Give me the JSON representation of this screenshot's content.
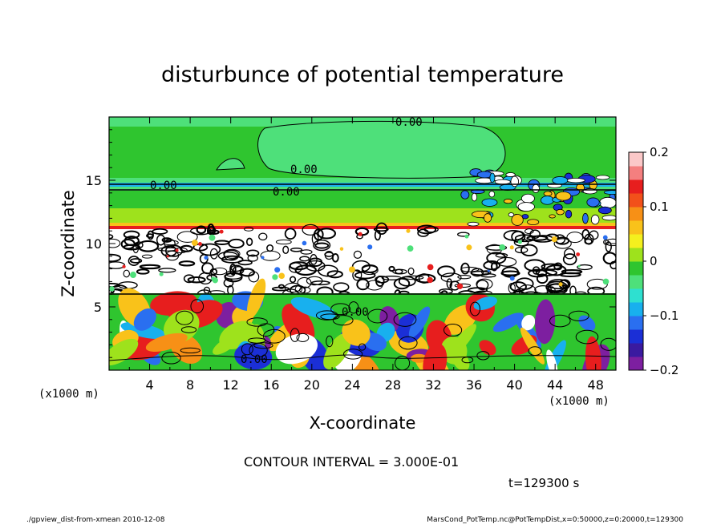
{
  "chart_data": {
    "type": "heatmap",
    "title": "disturbunce of potential temperature",
    "xlabel": "X-coordinate",
    "ylabel": "Z-coordinate",
    "x_unit": "(x1000 m)",
    "y_unit": "(x1000 m)",
    "xlim": [
      0,
      50
    ],
    "ylim": [
      0,
      20
    ],
    "x_ticks": [
      4,
      8,
      12,
      16,
      20,
      24,
      28,
      32,
      36,
      40,
      44,
      48
    ],
    "y_ticks": [
      5,
      10,
      15
    ],
    "colorbar": {
      "range": [
        -0.2,
        0.2
      ],
      "ticks": [
        {
          "value": 0.2,
          "label": "0.2"
        },
        {
          "value": 0.1,
          "label": "0.1"
        },
        {
          "value": 0.0,
          "label": "0"
        },
        {
          "value": -0.1,
          "label": "−0.1"
        },
        {
          "value": -0.2,
          "label": "−0.2"
        }
      ],
      "colors": [
        "#7d1fa0",
        "#3a1aa0",
        "#1b2fd6",
        "#2a6ff0",
        "#18b0ee",
        "#2ee0d0",
        "#4ee07a",
        "#2fc52f",
        "#9ee21c",
        "#f4f01e",
        "#f9c21a",
        "#f79016",
        "#f2501a",
        "#e71e1e",
        "#f47f7f",
        "#fbc8c8"
      ]
    },
    "contour_labels": [
      "0.00",
      "0.00",
      "0.00",
      "0.00",
      "0.00",
      "0.00"
    ],
    "contour_interval": "CONTOUR INTERVAL = 3.000E-01",
    "time": "t=129300 s"
  },
  "footer": {
    "left": "./gpview_dist-from-xmean  2010-12-08",
    "right": "MarsCond_PotTemp.nc@PotTempDist,x=0:50000,z=0:20000,t=129300"
  }
}
